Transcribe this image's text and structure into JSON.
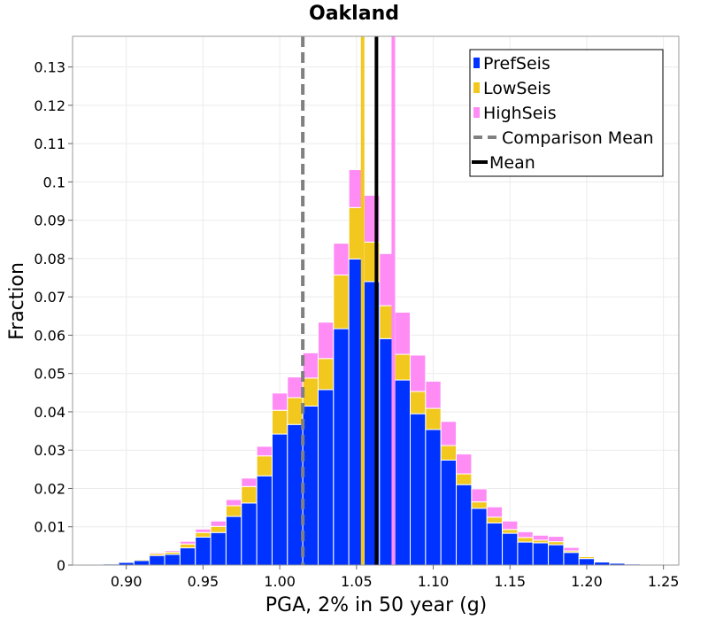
{
  "chart_data": {
    "type": "bar",
    "title": "Oakland",
    "xlabel": "PGA, 2% in 50 year (g)",
    "ylabel": "Fraction",
    "xlim": [
      0.865,
      1.26
    ],
    "ylim": [
      0,
      0.138
    ],
    "bin_width": 0.01,
    "grid": true,
    "legend_position": "top-right",
    "x_ticks": [
      {
        "value": 0.9,
        "label": "0.90"
      },
      {
        "value": 0.95,
        "label": "0.95"
      },
      {
        "value": 1.0,
        "label": "1.00"
      },
      {
        "value": 1.05,
        "label": "1.05"
      },
      {
        "value": 1.1,
        "label": "1.10"
      },
      {
        "value": 1.15,
        "label": "1.15"
      },
      {
        "value": 1.2,
        "label": "1.20"
      },
      {
        "value": 1.25,
        "label": "1.25"
      }
    ],
    "y_ticks": [
      {
        "value": 0,
        "label": "0"
      },
      {
        "value": 0.01,
        "label": "0.01"
      },
      {
        "value": 0.02,
        "label": "0.02"
      },
      {
        "value": 0.03,
        "label": "0.03"
      },
      {
        "value": 0.04,
        "label": "0.04"
      },
      {
        "value": 0.05,
        "label": "0.05"
      },
      {
        "value": 0.06,
        "label": "0.06"
      },
      {
        "value": 0.07,
        "label": "0.07"
      },
      {
        "value": 0.08,
        "label": "0.08"
      },
      {
        "value": 0.09,
        "label": "0.09"
      },
      {
        "value": 0.1,
        "label": "0.1"
      },
      {
        "value": 0.11,
        "label": "0.11"
      },
      {
        "value": 0.12,
        "label": "0.12"
      },
      {
        "value": 0.13,
        "label": "0.13"
      }
    ],
    "x": [
      0.88,
      0.89,
      0.9,
      0.91,
      0.92,
      0.93,
      0.94,
      0.95,
      0.96,
      0.97,
      0.98,
      0.99,
      1.0,
      1.01,
      1.02,
      1.03,
      1.04,
      1.05,
      1.06,
      1.07,
      1.08,
      1.09,
      1.1,
      1.11,
      1.12,
      1.13,
      1.14,
      1.15,
      1.16,
      1.17,
      1.18,
      1.19,
      1.2,
      1.21,
      1.22,
      1.23,
      1.24
    ],
    "series": [
      {
        "name": "PrefSeis",
        "color": "#0033ff",
        "values": [
          0.0002,
          0.0003,
          0.0007,
          0.0012,
          0.0025,
          0.0028,
          0.0045,
          0.0073,
          0.0085,
          0.0127,
          0.0162,
          0.0233,
          0.0342,
          0.0367,
          0.0415,
          0.0458,
          0.0617,
          0.0799,
          0.074,
          0.0591,
          0.0483,
          0.0395,
          0.0354,
          0.0274,
          0.021,
          0.0148,
          0.011,
          0.0083,
          0.006,
          0.0058,
          0.0053,
          0.0033,
          0.0017,
          0.0008,
          0.0005,
          0.0003,
          0.0001
        ]
      },
      {
        "name": "LowSeis",
        "color": "#f2c81e",
        "values": [
          0.0001,
          0.0001,
          0.0002,
          0.0003,
          0.0005,
          0.0006,
          0.001,
          0.0012,
          0.0016,
          0.0028,
          0.0043,
          0.0052,
          0.0062,
          0.007,
          0.0073,
          0.0081,
          0.014,
          0.0134,
          0.0103,
          0.0086,
          0.0067,
          0.0058,
          0.0055,
          0.0038,
          0.0028,
          0.0017,
          0.0015,
          0.001,
          0.0012,
          0.0007,
          0.0008,
          0.0004,
          0.0005,
          0.0002,
          0.0001,
          0.0001,
          0.0001
        ]
      },
      {
        "name": "HighSeis",
        "color": "#ff8cf5",
        "values": [
          0.0001,
          0.0001,
          0.0001,
          0.0002,
          0.0003,
          0.0004,
          0.0007,
          0.0009,
          0.0014,
          0.0016,
          0.0022,
          0.0025,
          0.0045,
          0.0054,
          0.0066,
          0.0095,
          0.0083,
          0.0099,
          0.0122,
          0.0136,
          0.011,
          0.0095,
          0.0071,
          0.0063,
          0.0052,
          0.0034,
          0.0027,
          0.0022,
          0.0015,
          0.0013,
          0.0014,
          0.0009,
          0.0002,
          0.0001,
          0.0002,
          0.0001,
          0.0001
        ]
      }
    ],
    "vertical_lines": [
      {
        "name": "Comparison Mean",
        "x": 1.015,
        "color": "#808080",
        "style": "dashed",
        "in_legend": true
      },
      {
        "name": "Mean",
        "x": 1.063,
        "color": "#000000",
        "style": "solid",
        "in_legend": true
      },
      {
        "name": "LowSeis mean",
        "x": 1.054,
        "color": "#f2c81e",
        "style": "solid",
        "in_legend": false
      },
      {
        "name": "HighSeis mean",
        "x": 1.074,
        "color": "#ff8cf5",
        "style": "solid",
        "in_legend": false
      }
    ],
    "legend": [
      {
        "label": "PrefSeis",
        "color": "#0033ff",
        "kind": "bar"
      },
      {
        "label": "LowSeis",
        "color": "#f2c81e",
        "kind": "bar"
      },
      {
        "label": "HighSeis",
        "color": "#ff8cf5",
        "kind": "bar"
      },
      {
        "label": "Comparison Mean",
        "color": "#808080",
        "kind": "dashed-line"
      },
      {
        "label": "Mean",
        "color": "#000000",
        "kind": "line"
      }
    ]
  }
}
